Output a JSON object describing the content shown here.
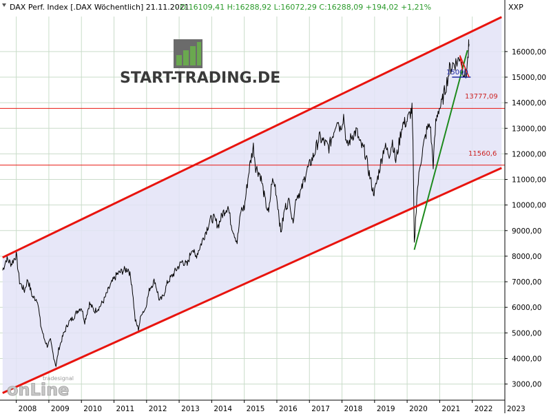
{
  "header": {
    "instrument": "DAX Perf. Index [.DAX  Wöchentlich] 21.11.2021",
    "ohlc": " - O:16109,41 H:16288,92 L:16072,29 C:16288,09 +194,02 +1,21%",
    "ohlc_color": "#2a9a2a"
  },
  "axis_unit": "XXP",
  "logo": {
    "text": "START-TRADING.DE",
    "text_color": "#3a3a3a",
    "bar_color": "#6aa84f",
    "box_color": "#6b6b6b"
  },
  "watermark": {
    "small": "tradesignal",
    "big": "onLine"
  },
  "annotations": {
    "level_13777": "13777,09",
    "level_11560": "11560,6",
    "level_15000": "15000"
  },
  "chart_data": {
    "type": "line",
    "title": "DAX Perf. Index [.DAX  Wöchentlich]",
    "xlabel": "",
    "ylabel": "",
    "x_ticks": [
      "2008",
      "2009",
      "2010",
      "2011",
      "2012",
      "2013",
      "2014",
      "2015",
      "2016",
      "2017",
      "2018",
      "2019",
      "2020",
      "2021",
      "2022",
      "2023"
    ],
    "y_ticks": [
      "3000,00",
      "4000,00",
      "5000,00",
      "6000,00",
      "7000,00",
      "8000,00",
      "9000,00",
      "10000,00",
      "11000,00",
      "12000,00",
      "13000,00",
      "14000,00",
      "15000,00",
      "16000,00"
    ],
    "xlim": [
      2007.5,
      2023.0
    ],
    "ylim": [
      2370,
      17370
    ],
    "grid": true,
    "colors": {
      "price": "#000000",
      "channel": "#e8140e",
      "channel_fill": "#e3e3f7",
      "hline": "#e8140e",
      "trend": "#1d8a1d",
      "level_15000": "#1f2aa0",
      "label_red": "#cc2222",
      "label_blue": "#1f2aa0"
    },
    "series": [
      {
        "name": "DAX",
        "points": [
          [
            2007.58,
            7450
          ],
          [
            2007.7,
            7900
          ],
          [
            2007.85,
            7700
          ],
          [
            2008.0,
            8050
          ],
          [
            2008.1,
            7000
          ],
          [
            2008.25,
            6650
          ],
          [
            2008.35,
            7100
          ],
          [
            2008.5,
            6400
          ],
          [
            2008.65,
            6300
          ],
          [
            2008.75,
            5300
          ],
          [
            2008.85,
            4800
          ],
          [
            2008.95,
            4500
          ],
          [
            2009.05,
            4700
          ],
          [
            2009.15,
            4050
          ],
          [
            2009.22,
            3700
          ],
          [
            2009.3,
            4350
          ],
          [
            2009.45,
            4950
          ],
          [
            2009.6,
            5400
          ],
          [
            2009.75,
            5600
          ],
          [
            2009.9,
            5900
          ],
          [
            2010.0,
            6000
          ],
          [
            2010.1,
            5450
          ],
          [
            2010.25,
            6150
          ],
          [
            2010.4,
            5850
          ],
          [
            2010.55,
            6000
          ],
          [
            2010.7,
            6300
          ],
          [
            2010.85,
            6750
          ],
          [
            2010.95,
            7000
          ],
          [
            2011.1,
            7300
          ],
          [
            2011.3,
            7450
          ],
          [
            2011.45,
            7500
          ],
          [
            2011.55,
            6900
          ],
          [
            2011.65,
            5500
          ],
          [
            2011.75,
            5150
          ],
          [
            2011.85,
            5800
          ],
          [
            2011.95,
            5900
          ],
          [
            2012.1,
            6750
          ],
          [
            2012.25,
            7050
          ],
          [
            2012.4,
            6250
          ],
          [
            2012.5,
            6400
          ],
          [
            2012.65,
            7000
          ],
          [
            2012.8,
            7250
          ],
          [
            2012.95,
            7550
          ],
          [
            2013.1,
            7800
          ],
          [
            2013.25,
            7650
          ],
          [
            2013.4,
            8350
          ],
          [
            2013.5,
            7950
          ],
          [
            2013.65,
            8400
          ],
          [
            2013.8,
            8900
          ],
          [
            2013.95,
            9400
          ],
          [
            2014.05,
            9500
          ],
          [
            2014.2,
            9200
          ],
          [
            2014.35,
            9700
          ],
          [
            2014.5,
            9950
          ],
          [
            2014.6,
            9250
          ],
          [
            2014.78,
            8550
          ],
          [
            2014.9,
            9800
          ],
          [
            2015.0,
            9900
          ],
          [
            2015.15,
            11400
          ],
          [
            2015.28,
            12300
          ],
          [
            2015.35,
            11500
          ],
          [
            2015.5,
            11150
          ],
          [
            2015.65,
            10100
          ],
          [
            2015.75,
            9650
          ],
          [
            2015.85,
            10950
          ],
          [
            2015.95,
            10750
          ],
          [
            2016.05,
            9800
          ],
          [
            2016.12,
            8900
          ],
          [
            2016.25,
            9900
          ],
          [
            2016.4,
            10200
          ],
          [
            2016.48,
            9300
          ],
          [
            2016.6,
            10350
          ],
          [
            2016.75,
            10550
          ],
          [
            2016.9,
            11300
          ],
          [
            2017.0,
            11550
          ],
          [
            2017.15,
            12000
          ],
          [
            2017.3,
            12650
          ],
          [
            2017.45,
            12450
          ],
          [
            2017.6,
            12250
          ],
          [
            2017.75,
            12900
          ],
          [
            2017.85,
            13400
          ],
          [
            2017.95,
            13000
          ],
          [
            2018.05,
            13500
          ],
          [
            2018.15,
            12250
          ],
          [
            2018.3,
            12700
          ],
          [
            2018.45,
            12900
          ],
          [
            2018.55,
            12400
          ],
          [
            2018.7,
            12100
          ],
          [
            2018.8,
            11450
          ],
          [
            2018.95,
            10550
          ],
          [
            2019.0,
            10500
          ],
          [
            2019.15,
            11400
          ],
          [
            2019.3,
            12300
          ],
          [
            2019.45,
            12000
          ],
          [
            2019.55,
            12500
          ],
          [
            2019.65,
            11700
          ],
          [
            2019.75,
            12400
          ],
          [
            2019.85,
            13150
          ],
          [
            2019.98,
            13250
          ],
          [
            2020.1,
            13600
          ],
          [
            2020.15,
            13750
          ],
          [
            2020.18,
            12300
          ],
          [
            2020.22,
            8400
          ],
          [
            2020.3,
            10400
          ],
          [
            2020.4,
            11600
          ],
          [
            2020.5,
            12300
          ],
          [
            2020.6,
            12900
          ],
          [
            2020.7,
            13200
          ],
          [
            2020.8,
            11600
          ],
          [
            2020.88,
            13200
          ],
          [
            2020.95,
            13700
          ],
          [
            2021.05,
            13900
          ],
          [
            2021.2,
            14700
          ],
          [
            2021.3,
            15300
          ],
          [
            2021.4,
            15500
          ],
          [
            2021.55,
            15600
          ],
          [
            2021.62,
            15850
          ],
          [
            2021.72,
            15300
          ],
          [
            2021.8,
            15000
          ],
          [
            2021.86,
            15650
          ],
          [
            2021.89,
            16150
          ],
          [
            2021.9,
            16290
          ]
        ]
      }
    ],
    "channel_upper": [
      [
        2007.58,
        7950
      ],
      [
        2022.9,
        17350
      ]
    ],
    "channel_lower": [
      [
        2007.58,
        2650
      ],
      [
        2022.9,
        11450
      ]
    ],
    "horizontal_levels": [
      13777.09,
      11560.6
    ],
    "trendline": [
      [
        2020.22,
        8250
      ],
      [
        2021.85,
        16050
      ]
    ],
    "level_15000_line": [
      2021.38,
      2021.95
    ],
    "red_wedge": [
      [
        2021.62,
        15850
      ],
      [
        2021.9,
        15000
      ],
      [
        2021.7,
        15250
      ]
    ]
  }
}
